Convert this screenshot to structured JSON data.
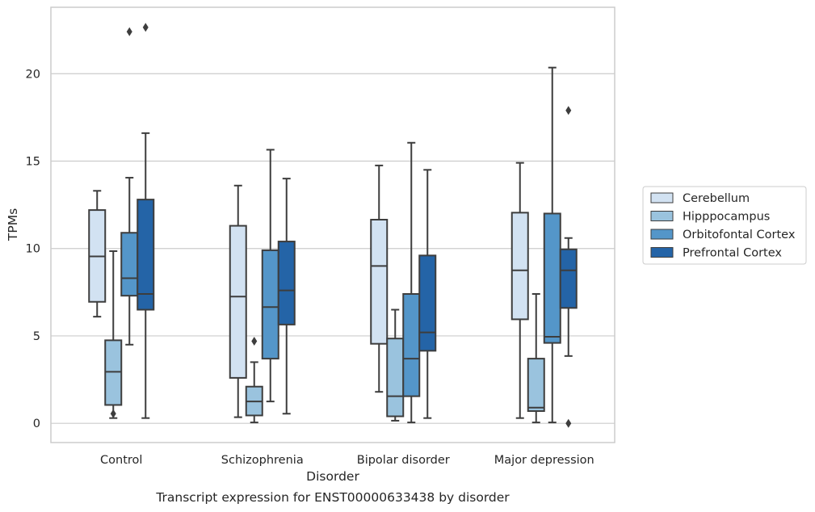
{
  "chart_data": {
    "type": "boxplot",
    "title": "",
    "xlabel": "Disorder",
    "ylabel": "TPMs",
    "caption": "Transcript expression for ENST00000633438 by disorder",
    "ylim": [
      -1.1,
      23.8
    ],
    "yticks": [
      0,
      5,
      10,
      15,
      20
    ],
    "grid": "horizontal",
    "legend_position": "right",
    "categories": [
      "Control",
      "Schizophrenia",
      "Bipolar disorder",
      "Major depression"
    ],
    "series": [
      {
        "name": "Cerebellum",
        "color": "#d2e2f2",
        "boxes": [
          {
            "whislo": 6.1,
            "q1": 6.95,
            "med": 9.55,
            "q3": 12.2,
            "whishi": 13.3,
            "fliers": []
          },
          {
            "whislo": 0.35,
            "q1": 2.6,
            "med": 7.25,
            "q3": 11.3,
            "whishi": 13.6,
            "fliers": []
          },
          {
            "whislo": 1.8,
            "q1": 4.55,
            "med": 9.0,
            "q3": 11.65,
            "whishi": 14.75,
            "fliers": []
          },
          {
            "whislo": 0.3,
            "q1": 5.95,
            "med": 8.75,
            "q3": 12.05,
            "whishi": 14.9,
            "fliers": []
          }
        ]
      },
      {
        "name": "Hipppocampus",
        "color": "#9ac3de",
        "boxes": [
          {
            "whislo": 0.3,
            "q1": 1.05,
            "med": 2.95,
            "q3": 4.75,
            "whishi": 9.85,
            "fliers": [
              0.55
            ]
          },
          {
            "whislo": 0.05,
            "q1": 0.45,
            "med": 1.25,
            "q3": 2.1,
            "whishi": 3.5,
            "fliers": [
              4.7
            ]
          },
          {
            "whislo": 0.15,
            "q1": 0.4,
            "med": 1.55,
            "q3": 4.85,
            "whishi": 6.5,
            "fliers": []
          },
          {
            "whislo": 0.05,
            "q1": 0.7,
            "med": 0.9,
            "q3": 3.7,
            "whishi": 7.4,
            "fliers": []
          }
        ]
      },
      {
        "name": "Orbitofontal Cortex",
        "color": "#5496c9",
        "boxes": [
          {
            "whislo": 4.5,
            "q1": 7.3,
            "med": 8.3,
            "q3": 10.9,
            "whishi": 14.05,
            "fliers": [
              22.4
            ]
          },
          {
            "whislo": 1.25,
            "q1": 3.7,
            "med": 6.65,
            "q3": 9.9,
            "whishi": 15.65,
            "fliers": []
          },
          {
            "whislo": 0.05,
            "q1": 1.55,
            "med": 3.7,
            "q3": 7.4,
            "whishi": 16.05,
            "fliers": []
          },
          {
            "whislo": 0.05,
            "q1": 4.6,
            "med": 4.95,
            "q3": 12.0,
            "whishi": 20.35,
            "fliers": []
          }
        ]
      },
      {
        "name": "Prefrontal Cortex",
        "color": "#2464a7",
        "boxes": [
          {
            "whislo": 0.3,
            "q1": 6.5,
            "med": 7.4,
            "q3": 12.8,
            "whishi": 16.6,
            "fliers": [
              22.65
            ]
          },
          {
            "whislo": 0.55,
            "q1": 5.65,
            "med": 7.6,
            "q3": 10.4,
            "whishi": 14.0,
            "fliers": []
          },
          {
            "whislo": 0.3,
            "q1": 4.15,
            "med": 5.2,
            "q3": 9.6,
            "whishi": 14.5,
            "fliers": []
          },
          {
            "whislo": 3.85,
            "q1": 6.6,
            "med": 8.75,
            "q3": 9.95,
            "whishi": 10.6,
            "fliers": [
              17.9,
              0.0
            ]
          }
        ]
      }
    ]
  }
}
